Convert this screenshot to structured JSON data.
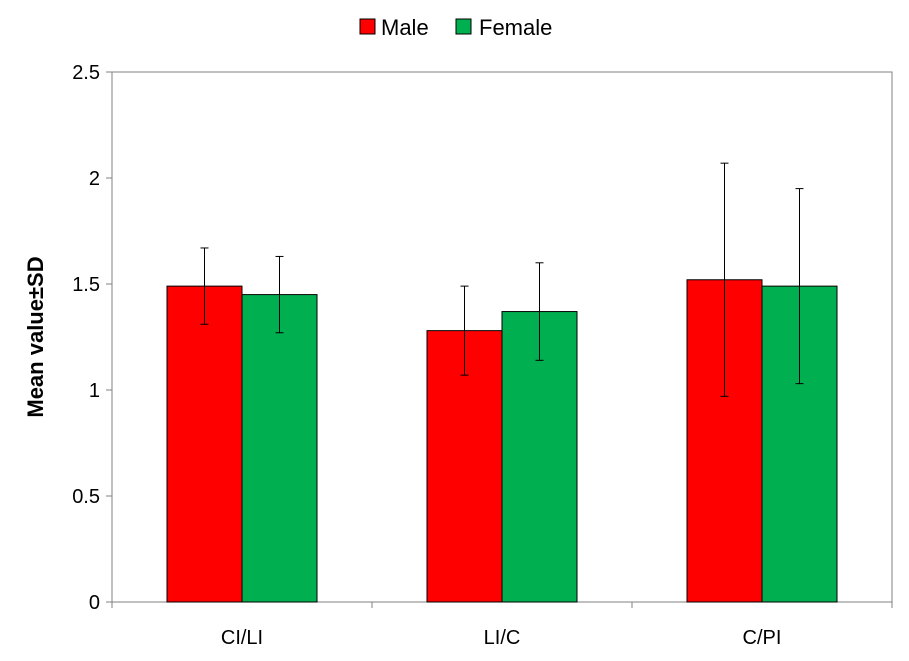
{
  "chart_data": {
    "type": "bar",
    "categories": [
      "CI/LI",
      "LI/C",
      "C/PI"
    ],
    "series": [
      {
        "name": "Male",
        "color": "#ff0000",
        "values": [
          1.49,
          1.28,
          1.52
        ],
        "sd": [
          0.18,
          0.21,
          0.55
        ]
      },
      {
        "name": "Female",
        "color": "#00b050",
        "values": [
          1.45,
          1.37,
          1.49
        ],
        "sd": [
          0.18,
          0.23,
          0.46
        ]
      }
    ],
    "title": "",
    "xlabel": "",
    "ylabel": "Mean value±SD",
    "ylim": [
      0,
      2.5
    ],
    "yticks": [
      0,
      0.5,
      1,
      1.5,
      2,
      2.5
    ],
    "ytick_labels": [
      "0",
      "0.5",
      "1",
      "1.5",
      "2",
      "2.5"
    ],
    "grid": false,
    "legend_position": "top"
  }
}
